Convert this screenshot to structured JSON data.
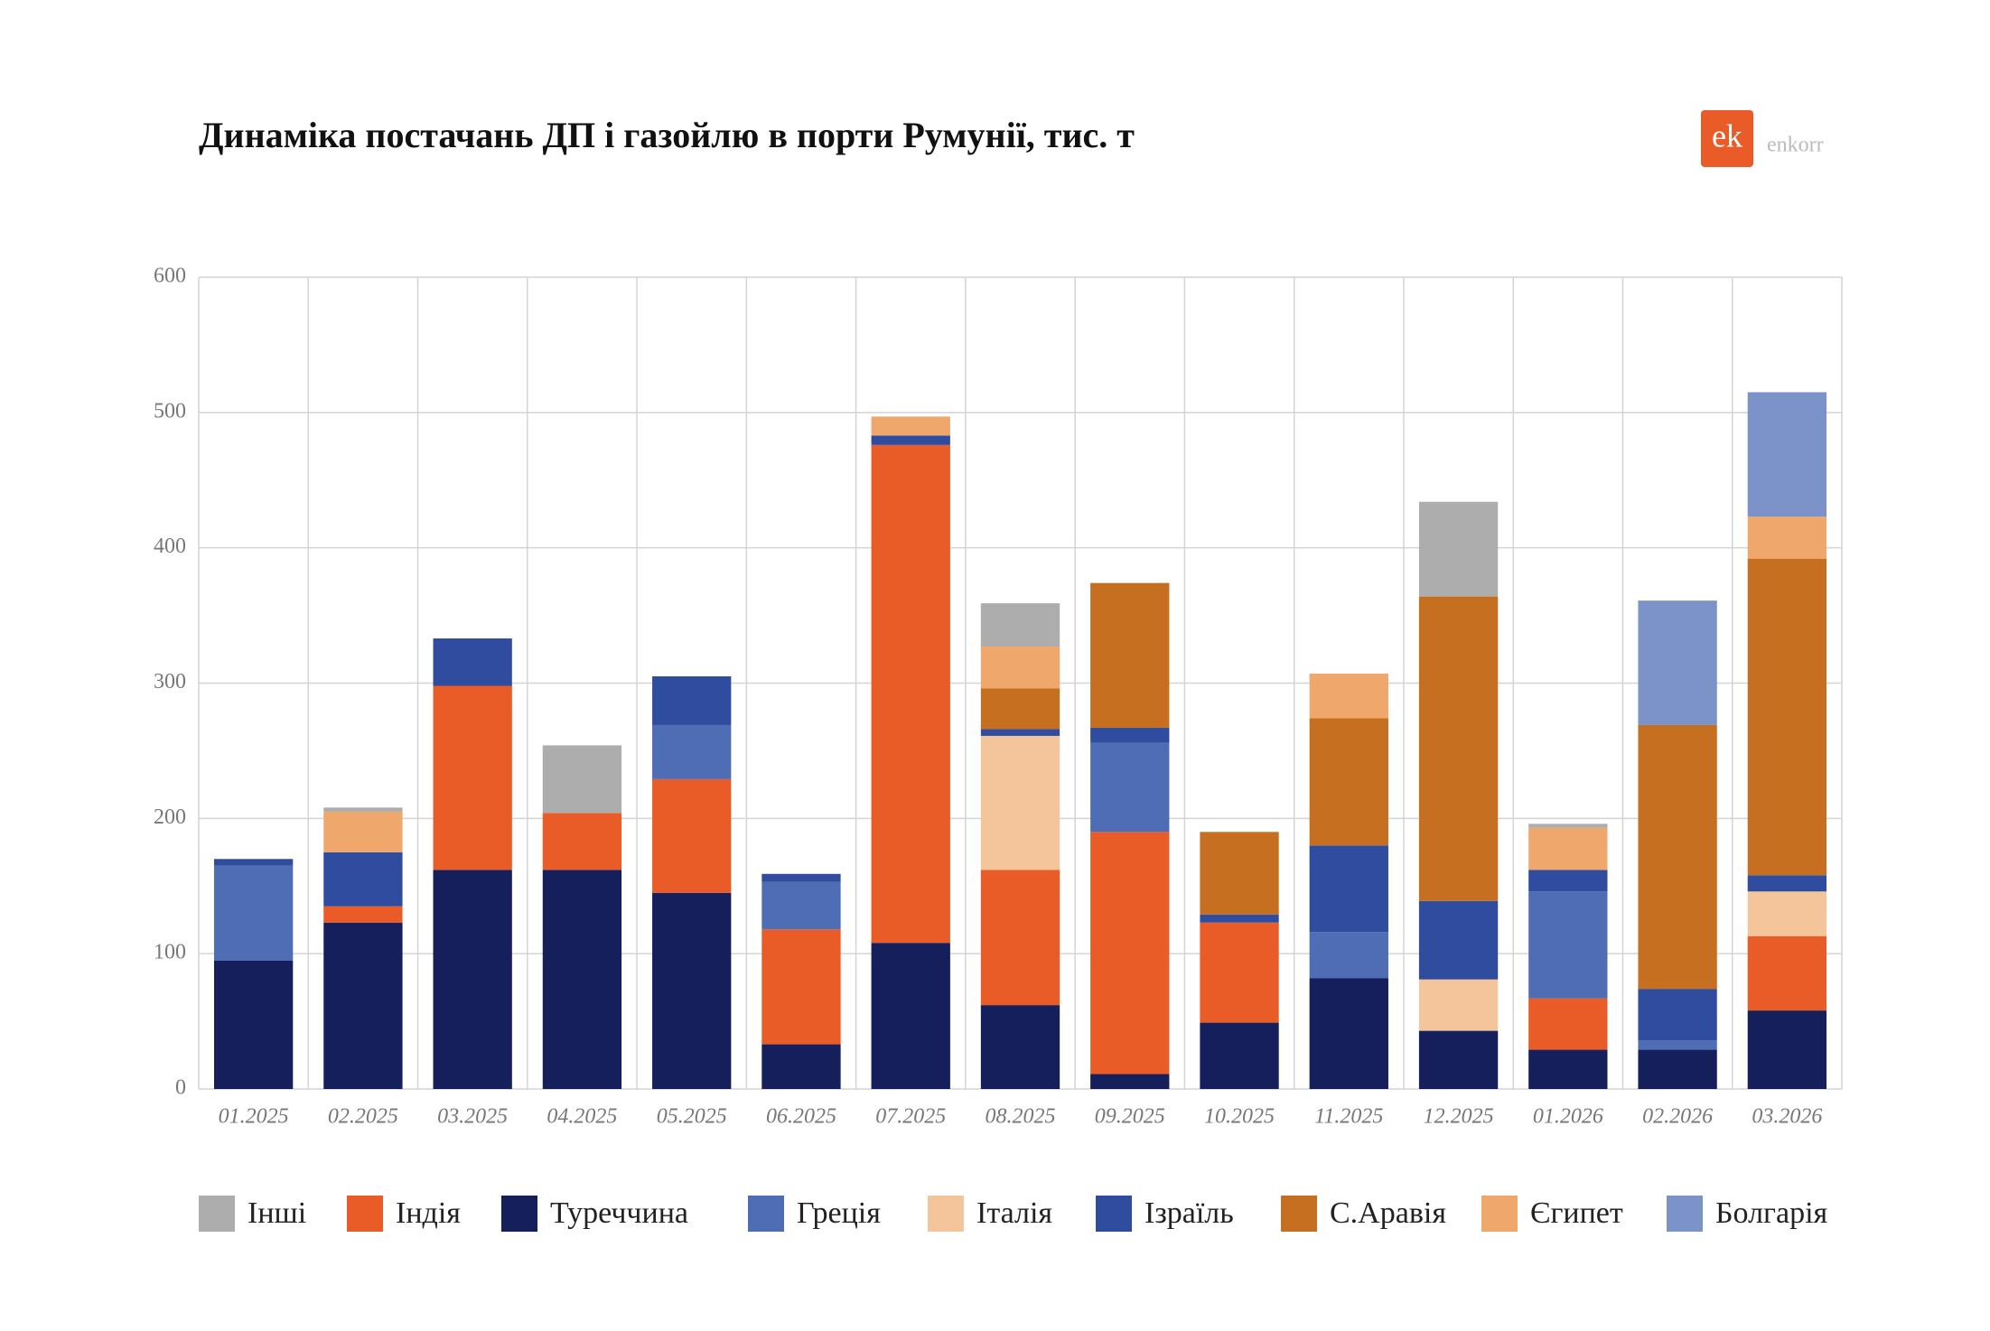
{
  "logo": {
    "mark": "ek",
    "name": "enkorr"
  },
  "chart_data": {
    "type": "stacked_bar",
    "title": "Динаміка постачань ДП і газойлю в порти Румунії, тис. т",
    "categories": [
      "01.2025",
      "02.2025",
      "03.2025",
      "04.2025",
      "05.2025",
      "06.2025",
      "07.2025",
      "08.2025",
      "09.2025",
      "10.2025",
      "11.2025",
      "12.2025",
      "01.2026",
      "02.2026",
      "03.2026"
    ],
    "series": [
      {
        "name": "Інші",
        "color": "#adadad",
        "values": [
          0,
          3,
          0,
          50,
          0,
          0,
          0,
          32,
          0,
          0,
          0,
          70,
          3,
          0,
          0
        ]
      },
      {
        "name": "Індія",
        "color": "#e95b27",
        "values": [
          0,
          12,
          136,
          42,
          84,
          85,
          368,
          100,
          179,
          74,
          0,
          0,
          38,
          0,
          55
        ]
      },
      {
        "name": "Туреччина",
        "color": "#141f5c",
        "values": [
          95,
          123,
          162,
          162,
          145,
          33,
          108,
          62,
          11,
          49,
          82,
          43,
          29,
          29,
          58
        ]
      },
      {
        "name": "Греція",
        "color": "#4f6db5",
        "values": [
          70,
          0,
          0,
          0,
          40,
          35,
          0,
          0,
          66,
          0,
          34,
          0,
          79,
          7,
          0
        ]
      },
      {
        "name": "Італія",
        "color": "#f4c59b",
        "values": [
          0,
          0,
          0,
          0,
          0,
          0,
          0,
          99,
          0,
          0,
          0,
          38,
          0,
          0,
          33
        ]
      },
      {
        "name": "Ізраїль",
        "color": "#2f4c9f",
        "values": [
          5,
          40,
          35,
          0,
          36,
          6,
          7,
          5,
          11,
          6,
          64,
          58,
          16,
          38,
          12
        ]
      },
      {
        "name": "С.Аравія",
        "color": "#c66f21",
        "values": [
          0,
          0,
          0,
          0,
          0,
          0,
          0,
          30,
          107,
          61,
          94,
          225,
          0,
          195,
          234
        ]
      },
      {
        "name": "Єгипет",
        "color": "#f0a76c",
        "values": [
          0,
          30,
          0,
          0,
          0,
          0,
          14,
          31,
          0,
          0,
          33,
          0,
          31,
          0,
          31
        ]
      },
      {
        "name": "Болгарія",
        "color": "#7b93c9",
        "values": [
          0,
          0,
          0,
          0,
          0,
          0,
          0,
          0,
          0,
          0,
          0,
          0,
          0,
          92,
          92
        ]
      }
    ],
    "ylim": [
      0,
      600
    ],
    "yticks": [
      0,
      100,
      200,
      300,
      400,
      500,
      600
    ],
    "grid": true,
    "legend": "bottom"
  }
}
